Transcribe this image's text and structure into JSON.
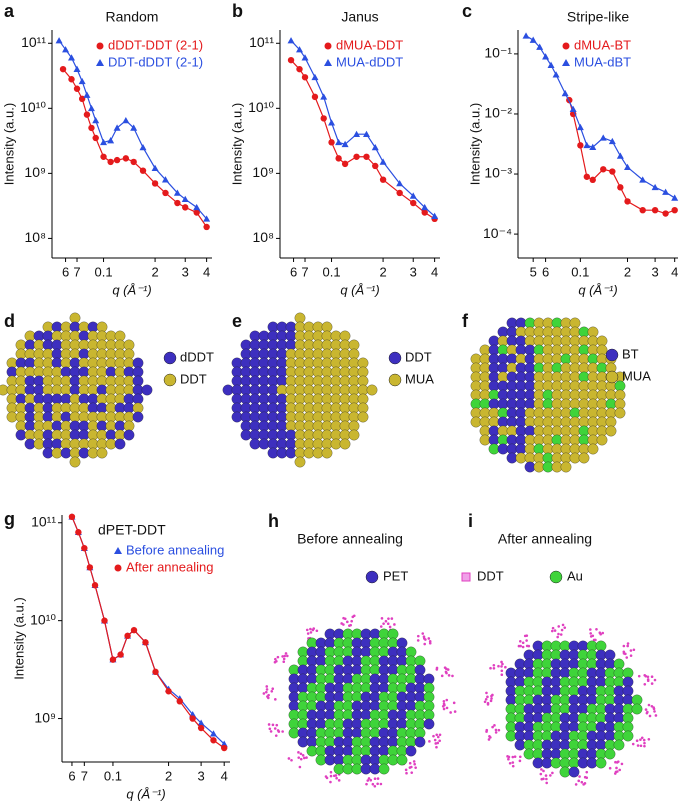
{
  "chart_data": [
    {
      "type": "line",
      "panel": "a",
      "title": "Random",
      "xlabel": "q (Å⁻¹)",
      "ylabel": "Intensity (a.u.)",
      "xscale": "log",
      "yscale": "log",
      "xlim": [
        0.05,
        0.43
      ],
      "ylim": [
        50000000.0,
        160000000000.0
      ],
      "xticks": [
        {
          "value": 0.06,
          "label": "6"
        },
        {
          "value": 0.07,
          "label": "7"
        },
        0.1,
        {
          "value": 0.2,
          "label": "2"
        },
        {
          "value": 0.3,
          "label": "3"
        },
        {
          "value": 0.4,
          "label": "4"
        }
      ],
      "yticks": [
        {
          "value": 100000000.0,
          "label": "10⁸"
        },
        {
          "value": 1000000000.0,
          "label": "10⁹"
        },
        {
          "value": 10000000000.0,
          "label": "10¹⁰"
        },
        {
          "value": 100000000000.0,
          "label": "10¹¹"
        }
      ],
      "legend": "upper right",
      "series": [
        {
          "name": "dDDT-DDT (2-1)",
          "color": "#e41a1c",
          "marker": "circle",
          "x": [
            0.058,
            0.065,
            0.07,
            0.075,
            0.08,
            0.085,
            0.09,
            0.1,
            0.11,
            0.12,
            0.135,
            0.15,
            0.17,
            0.2,
            0.23,
            0.27,
            0.3,
            0.35,
            0.4
          ],
          "values": [
            40000000000.0,
            28000000000.0,
            20000000000.0,
            14000000000.0,
            8000000000.0,
            5000000000.0,
            3500000000.0,
            1800000000.0,
            1500000000.0,
            1600000000.0,
            1700000000.0,
            1500000000.0,
            1100000000.0,
            700000000.0,
            500000000.0,
            350000000.0,
            300000000.0,
            250000000.0,
            150000000.0
          ]
        },
        {
          "name": "DDT-dDDT (2-1)",
          "color": "#2b4fe0",
          "marker": "triangle",
          "x": [
            0.055,
            0.06,
            0.065,
            0.07,
            0.075,
            0.08,
            0.085,
            0.09,
            0.1,
            0.11,
            0.12,
            0.135,
            0.15,
            0.17,
            0.2,
            0.23,
            0.27,
            0.3,
            0.35,
            0.4
          ],
          "values": [
            110000000000.0,
            80000000000.0,
            60000000000.0,
            40000000000.0,
            26000000000.0,
            16000000000.0,
            10000000000.0,
            6500000000.0,
            3000000000.0,
            3200000000.0,
            5000000000.0,
            6500000000.0,
            5000000000.0,
            2500000000.0,
            1200000000.0,
            800000000.0,
            500000000.0,
            400000000.0,
            300000000.0,
            200000000.0
          ]
        }
      ]
    },
    {
      "type": "line",
      "panel": "b",
      "title": "Janus",
      "xlabel": "q (Å⁻¹)",
      "ylabel": "Intensity (a.u.)",
      "xscale": "log",
      "yscale": "log",
      "xlim": [
        0.05,
        0.43
      ],
      "ylim": [
        50000000.0,
        160000000000.0
      ],
      "xticks": [
        {
          "value": 0.06,
          "label": "6"
        },
        {
          "value": 0.07,
          "label": "7"
        },
        0.1,
        {
          "value": 0.2,
          "label": "2"
        },
        {
          "value": 0.3,
          "label": "3"
        },
        {
          "value": 0.4,
          "label": "4"
        }
      ],
      "yticks": [
        {
          "value": 100000000.0,
          "label": "10⁸"
        },
        {
          "value": 1000000000.0,
          "label": "10⁹"
        },
        {
          "value": 10000000000.0,
          "label": "10¹⁰"
        },
        {
          "value": 100000000000.0,
          "label": "10¹¹"
        }
      ],
      "legend": "upper right",
      "series": [
        {
          "name": "dMUA-DDT",
          "color": "#e41a1c",
          "marker": "circle",
          "x": [
            0.058,
            0.065,
            0.07,
            0.08,
            0.09,
            0.1,
            0.11,
            0.12,
            0.14,
            0.16,
            0.18,
            0.2,
            0.25,
            0.3,
            0.35,
            0.4
          ],
          "values": [
            55000000000.0,
            40000000000.0,
            30000000000.0,
            15000000000.0,
            7000000000.0,
            3000000000.0,
            1700000000.0,
            1400000000.0,
            1800000000.0,
            1800000000.0,
            1300000000.0,
            800000000.0,
            500000000.0,
            350000000.0,
            250000000.0,
            200000000.0
          ]
        },
        {
          "name": "MUA-dDDT",
          "color": "#2b4fe0",
          "marker": "triangle",
          "x": [
            0.058,
            0.065,
            0.07,
            0.08,
            0.09,
            0.1,
            0.11,
            0.12,
            0.14,
            0.16,
            0.18,
            0.2,
            0.25,
            0.3,
            0.35,
            0.4
          ],
          "values": [
            110000000000.0,
            80000000000.0,
            60000000000.0,
            30000000000.0,
            15000000000.0,
            6000000000.0,
            3000000000.0,
            2800000000.0,
            4000000000.0,
            4000000000.0,
            2500000000.0,
            1500000000.0,
            700000000.0,
            450000000.0,
            300000000.0,
            220000000.0
          ]
        }
      ]
    },
    {
      "type": "line",
      "panel": "c",
      "title": "Stripe-like",
      "xlabel": "q (Å⁻¹)",
      "ylabel": "Intensity (a.u.)",
      "xscale": "log",
      "yscale": "log",
      "xlim": [
        0.04,
        0.42
      ],
      "ylim": [
        4e-05,
        0.25
      ],
      "xticks": [
        {
          "value": 0.05,
          "label": "5"
        },
        {
          "value": 0.06,
          "label": "6"
        },
        0.1,
        {
          "value": 0.2,
          "label": "2"
        },
        {
          "value": 0.3,
          "label": "3"
        },
        {
          "value": 0.4,
          "label": "4"
        }
      ],
      "yticks": [
        {
          "value": 0.0001,
          "label": "10⁻⁴"
        },
        {
          "value": 0.001,
          "label": "10⁻³"
        },
        {
          "value": 0.01,
          "label": "10⁻²"
        },
        {
          "value": 0.1,
          "label": "10⁻¹"
        }
      ],
      "legend": "upper right",
      "series": [
        {
          "name": "dMUA-BT",
          "color": "#e41a1c",
          "marker": "circle",
          "x": [
            0.085,
            0.09,
            0.1,
            0.11,
            0.12,
            0.14,
            0.16,
            0.18,
            0.2,
            0.25,
            0.3,
            0.35,
            0.4
          ],
          "values": [
            0.017,
            0.01,
            0.003,
            0.0009,
            0.0008,
            0.0012,
            0.0011,
            0.0006,
            0.00035,
            0.00025,
            0.00025,
            0.00022,
            0.00025
          ]
        },
        {
          "name": "MUA-dBT",
          "color": "#2b4fe0",
          "marker": "triangle",
          "x": [
            0.045,
            0.05,
            0.055,
            0.06,
            0.065,
            0.07,
            0.08,
            0.09,
            0.1,
            0.11,
            0.12,
            0.14,
            0.16,
            0.18,
            0.2,
            0.25,
            0.3,
            0.35,
            0.4
          ],
          "values": [
            0.2,
            0.17,
            0.13,
            0.09,
            0.065,
            0.045,
            0.022,
            0.012,
            0.006,
            0.003,
            0.0028,
            0.004,
            0.0035,
            0.002,
            0.0013,
            0.0008,
            0.0006,
            0.0005,
            0.0004
          ]
        }
      ]
    },
    {
      "type": "line",
      "panel": "g",
      "legend_title": "dPET-DDT",
      "xlabel": "q (Å⁻¹)",
      "ylabel": "Intensity (a.u.)",
      "xscale": "log",
      "yscale": "log",
      "xlim": [
        0.053,
        0.43
      ],
      "ylim": [
        360000000.0,
        120000000000.0
      ],
      "xticks": [
        {
          "value": 0.06,
          "label": "6"
        },
        {
          "value": 0.07,
          "label": "7"
        },
        0.1,
        {
          "value": 0.2,
          "label": "2"
        },
        {
          "value": 0.3,
          "label": "3"
        },
        {
          "value": 0.4,
          "label": "4"
        }
      ],
      "yticks": [
        {
          "value": 1000000000.0,
          "label": "10⁹"
        },
        {
          "value": 10000000000.0,
          "label": "10¹⁰"
        },
        {
          "value": 100000000000.0,
          "label": "10¹¹"
        }
      ],
      "legend": "upper right",
      "series": [
        {
          "name": "Before annealing",
          "color": "#2b4fe0",
          "marker": "triangle",
          "x": [
            0.06,
            0.065,
            0.07,
            0.075,
            0.08,
            0.09,
            0.1,
            0.11,
            0.12,
            0.13,
            0.15,
            0.17,
            0.2,
            0.23,
            0.27,
            0.3,
            0.35,
            0.4
          ],
          "values": [
            115000000000.0,
            80000000000.0,
            55000000000.0,
            35000000000.0,
            23000000000.0,
            10000000000.0,
            4000000000.0,
            4500000000.0,
            7000000000.0,
            8000000000.0,
            6000000000.0,
            3000000000.0,
            2000000000.0,
            1600000000.0,
            1100000000.0,
            900000000.0,
            700000000.0,
            550000000.0
          ]
        },
        {
          "name": "After annealing",
          "color": "#e41a1c",
          "marker": "circle",
          "x": [
            0.06,
            0.065,
            0.07,
            0.075,
            0.08,
            0.09,
            0.1,
            0.11,
            0.12,
            0.13,
            0.15,
            0.17,
            0.2,
            0.23,
            0.27,
            0.3,
            0.35,
            0.4
          ],
          "values": [
            115000000000.0,
            80000000000.0,
            55000000000.0,
            35000000000.0,
            23000000000.0,
            10000000000.0,
            4000000000.0,
            4500000000.0,
            7000000000.0,
            8000000000.0,
            6000000000.0,
            3000000000.0,
            1900000000.0,
            1500000000.0,
            1000000000.0,
            800000000.0,
            600000000.0,
            500000000.0
          ]
        }
      ]
    }
  ],
  "illustrations": [
    {
      "panel": "d",
      "legend": [
        "dDDT",
        "DDT"
      ]
    },
    {
      "panel": "e",
      "legend": [
        "DDT",
        "MUA"
      ]
    },
    {
      "panel": "f",
      "legend": [
        "BT",
        "MUA"
      ]
    },
    {
      "panel": "h",
      "title": "Before annealing"
    },
    {
      "panel": "i",
      "title": "After annealing"
    }
  ],
  "annealing_legend": [
    "PET",
    "DDT",
    "Au"
  ]
}
